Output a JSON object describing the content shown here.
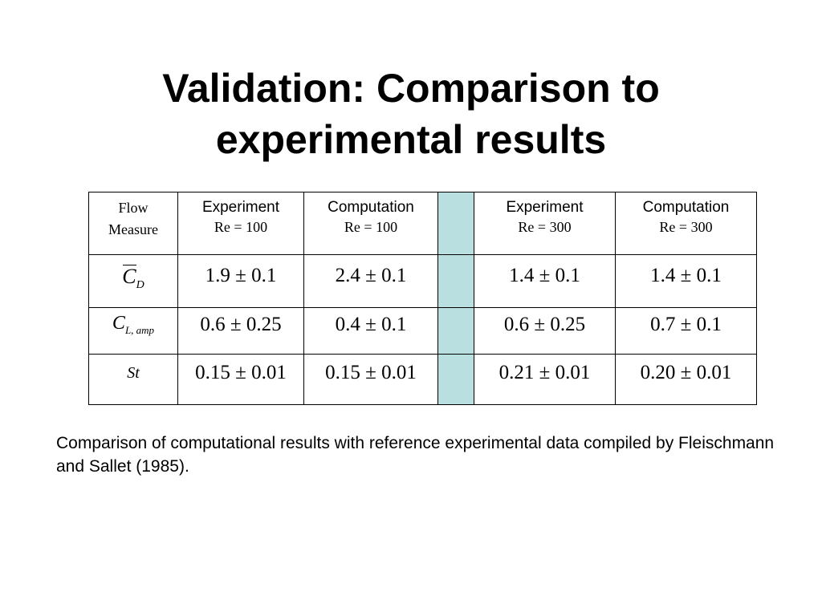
{
  "title": {
    "line1": "Validation: Comparison to",
    "line2": "experimental results"
  },
  "table": {
    "header": {
      "flow_measure_line1": "Flow",
      "flow_measure_line2": "Measure",
      "columns": [
        {
          "label": "Experiment",
          "re": "Re = 100"
        },
        {
          "label": "Computation",
          "re": "Re = 100"
        },
        {
          "label": "Experiment",
          "re": "Re = 300"
        },
        {
          "label": "Computation",
          "re": "Re = 300"
        }
      ]
    },
    "rows": [
      {
        "symbol_main": "C",
        "symbol_sub": "D",
        "values": [
          "1.9 ± 0.1",
          "2.4 ± 0.1",
          "1.4 ± 0.1",
          "1.4 ± 0.1"
        ]
      },
      {
        "symbol_main": "C",
        "symbol_sub": "L, amp",
        "values": [
          "0.6 ± 0.25",
          "0.4 ± 0.1",
          "0.6 ± 0.25",
          "0.7 ± 0.1"
        ]
      },
      {
        "symbol_main": "St",
        "symbol_sub": "",
        "values": [
          "0.15 ± 0.01",
          "0.15 ± 0.01",
          "0.21 ± 0.01",
          "0.20 ± 0.01"
        ]
      }
    ],
    "spacer_color": "#b9dfe0"
  },
  "caption": "Comparison of computational results with reference experimental data compiled by Fleischmann and Sallet (1985)."
}
